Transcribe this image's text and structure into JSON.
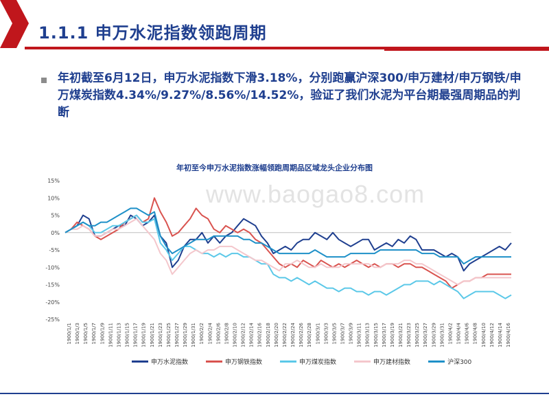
{
  "title": "1.1.1 申万水泥指数领跑周期",
  "bullet": "年初截至6月12日，申万水泥指数下滑3.18%，分别跑赢沪深300/申万建材/申万钢铁/申万煤炭指数4.34%/9.27%/8.56%/14.52%，验证了我们水泥为平台期最强周期品的判断",
  "watermark": "www.baogao8.com",
  "colors": {
    "title": "#1f3f8f",
    "accent": "#c0161c",
    "bullet": "#8c8c8c"
  },
  "chart_data": {
    "type": "line",
    "title": "年初至今申万水泥指数涨幅领跑周期品区域龙头企业分布图",
    "yticks": [
      "15%",
      "10%",
      "5%",
      "0%",
      "-5%",
      "-10%",
      "-15%",
      "-20%",
      "-25%"
    ],
    "ylim": [
      -25,
      15
    ],
    "x_ticks": [
      "1900/1/1",
      "1900/1/3",
      "1900/1/5",
      "1900/1/7",
      "1900/1/9",
      "1900/1/11",
      "1900/1/13",
      "1900/1/15",
      "1900/1/17",
      "1900/1/19",
      "1900/1/21",
      "1900/1/23",
      "1900/1/25",
      "1900/1/27",
      "1900/1/29",
      "1900/1/31",
      "1900/2/2",
      "1900/2/4",
      "1900/2/6",
      "1900/2/8",
      "1900/2/10",
      "1900/2/12",
      "1900/2/14",
      "1900/2/16",
      "1900/2/18",
      "1900/2/20",
      "1900/2/22",
      "1900/2/24",
      "1900/2/26",
      "1900/2/28",
      "1900/3/1",
      "1900/3/3",
      "1900/3/5",
      "1900/3/7",
      "1900/3/9",
      "1900/3/11",
      "1900/3/13",
      "1900/3/15",
      "1900/3/17",
      "1900/3/19",
      "1900/3/21",
      "1900/3/23",
      "1900/3/25",
      "1900/3/27",
      "1900/3/29",
      "1900/3/31",
      "1900/4/2",
      "1900/4/4",
      "1900/4/6",
      "1900/4/8",
      "1900/4/10",
      "1900/4/12",
      "1900/4/14",
      "1900/4/16"
    ],
    "series": [
      {
        "name": "申万水泥指数",
        "color": "#1f3f8f",
        "values": [
          0,
          1,
          2,
          5,
          4,
          -1,
          -1,
          0,
          1,
          2,
          2,
          5,
          4,
          2,
          3,
          5,
          -1,
          -3,
          -10,
          -8,
          -4,
          -2,
          -2,
          0,
          -3,
          -1,
          -3,
          -1,
          0,
          2,
          4,
          3,
          2,
          -1,
          -3,
          -6,
          -5,
          -4,
          -5,
          -3,
          -2,
          -2,
          0,
          -1,
          -2,
          0,
          -2,
          -3,
          -4,
          -3,
          -2,
          -2,
          -5,
          -4,
          -3,
          -4,
          -2,
          -3,
          -1,
          -2,
          -5,
          -5,
          -5,
          -6,
          -7,
          -6,
          -7,
          -11,
          -9,
          -8,
          -7,
          -6,
          -5,
          -4,
          -5,
          -3
        ]
      },
      {
        "name": "申万钢铁指数",
        "color": "#d9534f",
        "values": [
          0,
          1,
          3,
          2,
          1,
          -1,
          -2,
          -1,
          0,
          1,
          3,
          4,
          5,
          3,
          4,
          10,
          6,
          3,
          -1,
          0,
          2,
          4,
          7,
          5,
          4,
          1,
          0,
          2,
          1,
          0,
          1,
          0,
          -2,
          -3,
          -5,
          -7,
          -9,
          -10,
          -9,
          -10,
          -8,
          -9,
          -10,
          -8,
          -9,
          -10,
          -9,
          -10,
          -9,
          -8,
          -9,
          -10,
          -9,
          -10,
          -9,
          -9,
          -10,
          -9,
          -9,
          -10,
          -10,
          -11,
          -12,
          -13,
          -14,
          -16,
          -15,
          -14,
          -14,
          -13,
          -13,
          -12,
          -12,
          -12,
          -12,
          -12
        ]
      },
      {
        "name": "申万煤炭指数",
        "color": "#5bc8e8",
        "values": [
          0,
          1,
          2,
          3,
          2,
          0,
          0,
          1,
          2,
          2,
          3,
          4,
          5,
          3,
          3,
          4,
          -3,
          -5,
          -8,
          -6,
          -4,
          -4,
          -5,
          -6,
          -6,
          -7,
          -6,
          -7,
          -6,
          -6,
          -7,
          -7,
          -8,
          -9,
          -9,
          -12,
          -13,
          -13,
          -14,
          -13,
          -14,
          -15,
          -14,
          -15,
          -16,
          -16,
          -17,
          -16,
          -16,
          -17,
          -17,
          -18,
          -17,
          -17,
          -18,
          -17,
          -16,
          -15,
          -15,
          -14,
          -14,
          -14,
          -15,
          -14,
          -15,
          -16,
          -17,
          -19,
          -18,
          -17,
          -17,
          -17,
          -17,
          -18,
          -19,
          -18
        ]
      },
      {
        "name": "申万建材指数",
        "color": "#f4c7cc",
        "values": [
          0,
          1,
          1,
          2,
          1,
          -1,
          -1,
          0,
          1,
          1,
          2,
          3,
          4,
          2,
          0,
          -2,
          -6,
          -8,
          -12,
          -10,
          -8,
          -6,
          -5,
          -6,
          -5,
          -5,
          -4,
          -4,
          -4,
          -5,
          -6,
          -7,
          -8,
          -8,
          -9,
          -10,
          -11,
          -9,
          -9,
          -8,
          -9,
          -10,
          -10,
          -9,
          -10,
          -10,
          -10,
          -9,
          -9,
          -9,
          -9,
          -9,
          -10,
          -10,
          -9,
          -9,
          -9,
          -8,
          -8,
          -9,
          -9,
          -10,
          -11,
          -12,
          -13,
          -14,
          -15,
          -14,
          -14,
          -13,
          -13,
          -13,
          -13,
          -13,
          -13,
          -13
        ]
      },
      {
        "name": "沪深300",
        "color": "#1e90c8",
        "values": [
          0,
          1,
          2,
          3,
          2,
          2,
          3,
          3,
          4,
          5,
          6,
          7,
          7,
          6,
          5,
          6,
          -1,
          -4,
          -6,
          -5,
          -4,
          -3,
          -2,
          -2,
          -2,
          -1,
          -1,
          -1,
          -1,
          -1,
          -2,
          -2,
          -3,
          -3,
          -4,
          -5,
          -6,
          -6,
          -6,
          -6,
          -6,
          -6,
          -5,
          -6,
          -7,
          -7,
          -7,
          -7,
          -6,
          -6,
          -6,
          -6,
          -6,
          -5,
          -5,
          -5,
          -5,
          -5,
          -5,
          -5,
          -6,
          -6,
          -6,
          -7,
          -7,
          -7,
          -7,
          -9,
          -8,
          -7,
          -7,
          -7,
          -7,
          -7,
          -7,
          -7
        ]
      }
    ]
  }
}
